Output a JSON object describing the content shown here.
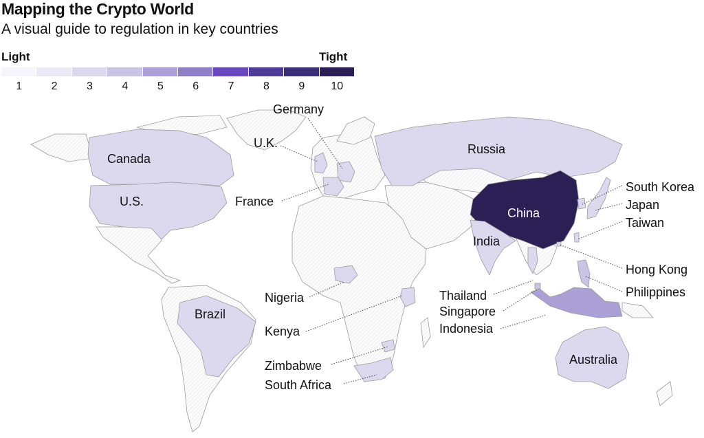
{
  "title": "Mapping the Crypto World",
  "subtitle": "A visual guide to regulation in key countries",
  "scale": {
    "low_label": "Light",
    "high_label": "Tight",
    "steps": [
      "1",
      "2",
      "3",
      "4",
      "5",
      "6",
      "7",
      "8",
      "9",
      "10"
    ],
    "colors": [
      "#f6f5fb",
      "#ebe9f5",
      "#dcd9ee",
      "#c9c3e4",
      "#ab9fd6",
      "#8e7fc8",
      "#6a48bf",
      "#4e3a98",
      "#3b2e79",
      "#2c1f55"
    ]
  },
  "colors": {
    "unrated_fill": "#fbfbfb",
    "border": "#9b9b9b",
    "leader_line": "#444444"
  },
  "countries": {
    "canada": {
      "name": "Canada",
      "level": 3
    },
    "us": {
      "name": "U.S.",
      "level": 3
    },
    "brazil": {
      "name": "Brazil",
      "level": 3
    },
    "russia": {
      "name": "Russia",
      "level": 3
    },
    "china": {
      "name": "China",
      "level": 10
    },
    "india": {
      "name": "India",
      "level": 3
    },
    "australia": {
      "name": "Australia",
      "level": 3
    },
    "germany": {
      "name": "Germany",
      "level": 3
    },
    "uk": {
      "name": "U.K.",
      "level": 3
    },
    "france": {
      "name": "France",
      "level": 3
    },
    "nigeria": {
      "name": "Nigeria",
      "level": 3
    },
    "kenya": {
      "name": "Kenya",
      "level": 3
    },
    "zimbabwe": {
      "name": "Zimbabwe",
      "level": 3
    },
    "south_africa": {
      "name": "South Africa",
      "level": 3
    },
    "thailand": {
      "name": "Thailand",
      "level": 3
    },
    "singapore": {
      "name": "Singapore",
      "level": 4
    },
    "indonesia": {
      "name": "Indonesia",
      "level": 5
    },
    "south_korea": {
      "name": "South Korea",
      "level": 3
    },
    "japan": {
      "name": "Japan",
      "level": 3
    },
    "taiwan": {
      "name": "Taiwan",
      "level": 3
    },
    "hong_kong": {
      "name": "Hong Kong",
      "level": 3
    },
    "philippines": {
      "name": "Philippines",
      "level": 4
    }
  }
}
